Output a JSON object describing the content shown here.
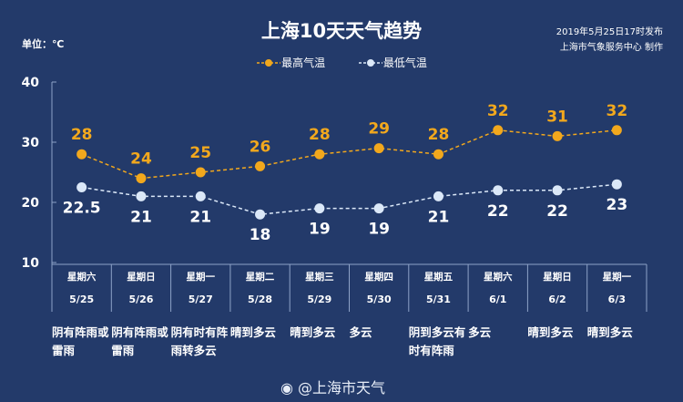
{
  "header": {
    "title": "上海10天天气趋势",
    "unit": "单位：℃",
    "published": "2019年5月25日17时发布",
    "producer": "上海市气象服务中心 制作"
  },
  "watermark": "@上海市天气",
  "colors": {
    "background": "#233a6a",
    "high": "#f2a81d",
    "low": "#dbe8f8"
  },
  "chart_data": {
    "type": "line",
    "title": "上海10天天气趋势",
    "ylabel": "单位：℃",
    "ylim": [
      10,
      40
    ],
    "yticks": [
      "10",
      "20",
      "30",
      "40"
    ],
    "categories": [
      "5/25",
      "5/26",
      "5/27",
      "5/28",
      "5/29",
      "5/30",
      "5/31",
      "6/1",
      "6/2",
      "6/3"
    ],
    "weekdays": [
      "星期六",
      "星期日",
      "星期一",
      "星期二",
      "星期三",
      "星期四",
      "星期五",
      "星期六",
      "星期日",
      "星期一"
    ],
    "series": [
      {
        "name": "最高气温",
        "values": [
          28,
          24,
          25,
          26,
          28,
          29,
          28,
          32,
          31,
          32
        ],
        "labels": [
          "28",
          "24",
          "25",
          "26",
          "28",
          "29",
          "28",
          "32",
          "31",
          "32"
        ]
      },
      {
        "name": "最低气温",
        "values": [
          22.5,
          21,
          21,
          18,
          19,
          19,
          21,
          22,
          22,
          23
        ],
        "labels": [
          "22.5",
          "21",
          "21",
          "18",
          "19",
          "19",
          "21",
          "22",
          "22",
          "23"
        ]
      }
    ],
    "legend": "top-center",
    "weather": [
      "阴有阵雨或雷雨",
      "阴有阵雨或雷雨",
      "阴有时有阵雨转多云",
      "晴到多云",
      "晴到多云",
      "多云",
      "阴到多云有时有阵雨",
      "多云",
      "晴到多云",
      "晴到多云"
    ]
  }
}
